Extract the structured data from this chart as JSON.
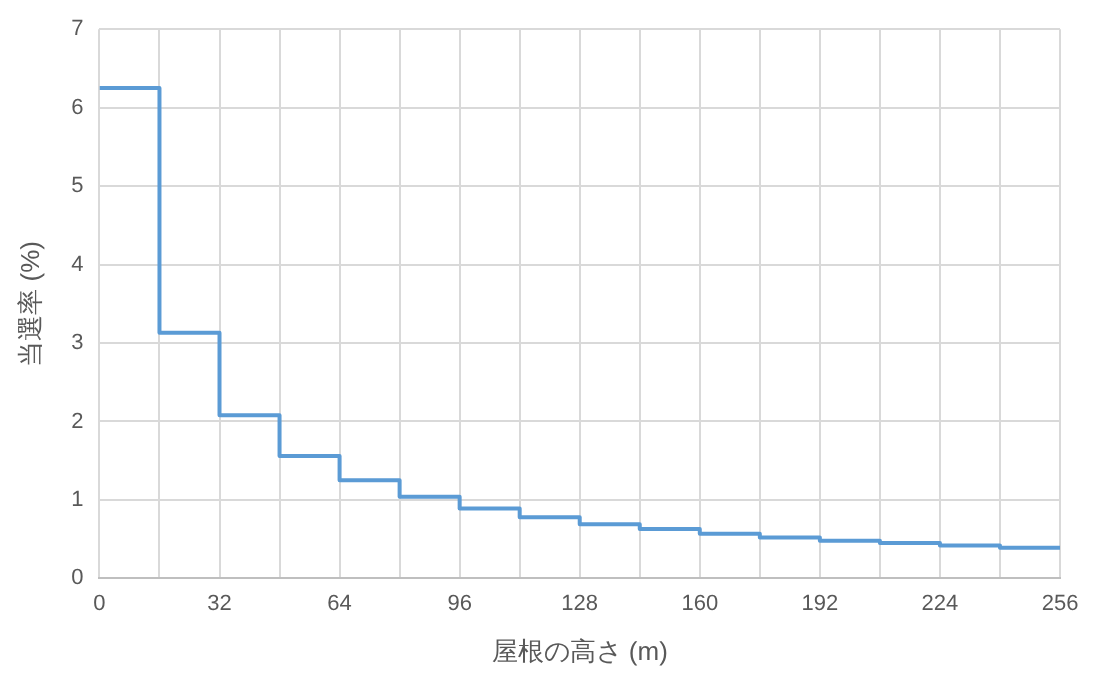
{
  "chart_data": {
    "type": "step",
    "xlabel": "屋根の高さ (m)",
    "ylabel": "当選率 (%)",
    "x": [
      0,
      16,
      32,
      48,
      64,
      80,
      96,
      112,
      128,
      144,
      160,
      176,
      192,
      208,
      224,
      240,
      256
    ],
    "series": [
      {
        "color": "#5b9bd5",
        "values": [
          6.25,
          3.13,
          2.08,
          1.56,
          1.25,
          1.04,
          0.89,
          0.78,
          0.69,
          0.63,
          0.57,
          0.52,
          0.48,
          0.45,
          0.42,
          0.39,
          0.39
        ]
      }
    ],
    "xlim": [
      0,
      256
    ],
    "xticks": [
      0,
      {
        "value": 16,
        "label": null
      },
      32,
      {
        "value": 48,
        "label": null
      },
      64,
      {
        "value": 80,
        "label": null
      },
      96,
      {
        "value": 112,
        "label": null
      },
      128,
      {
        "value": 144,
        "label": null
      },
      160,
      {
        "value": 176,
        "label": null
      },
      192,
      {
        "value": 208,
        "label": null
      },
      224,
      {
        "value": 240,
        "label": null
      },
      256
    ],
    "ylim": [
      0,
      7
    ],
    "yticks": [
      0,
      1,
      2,
      3,
      4,
      5,
      6,
      7
    ],
    "grid": true,
    "line_style": "solid",
    "marker": "none"
  }
}
